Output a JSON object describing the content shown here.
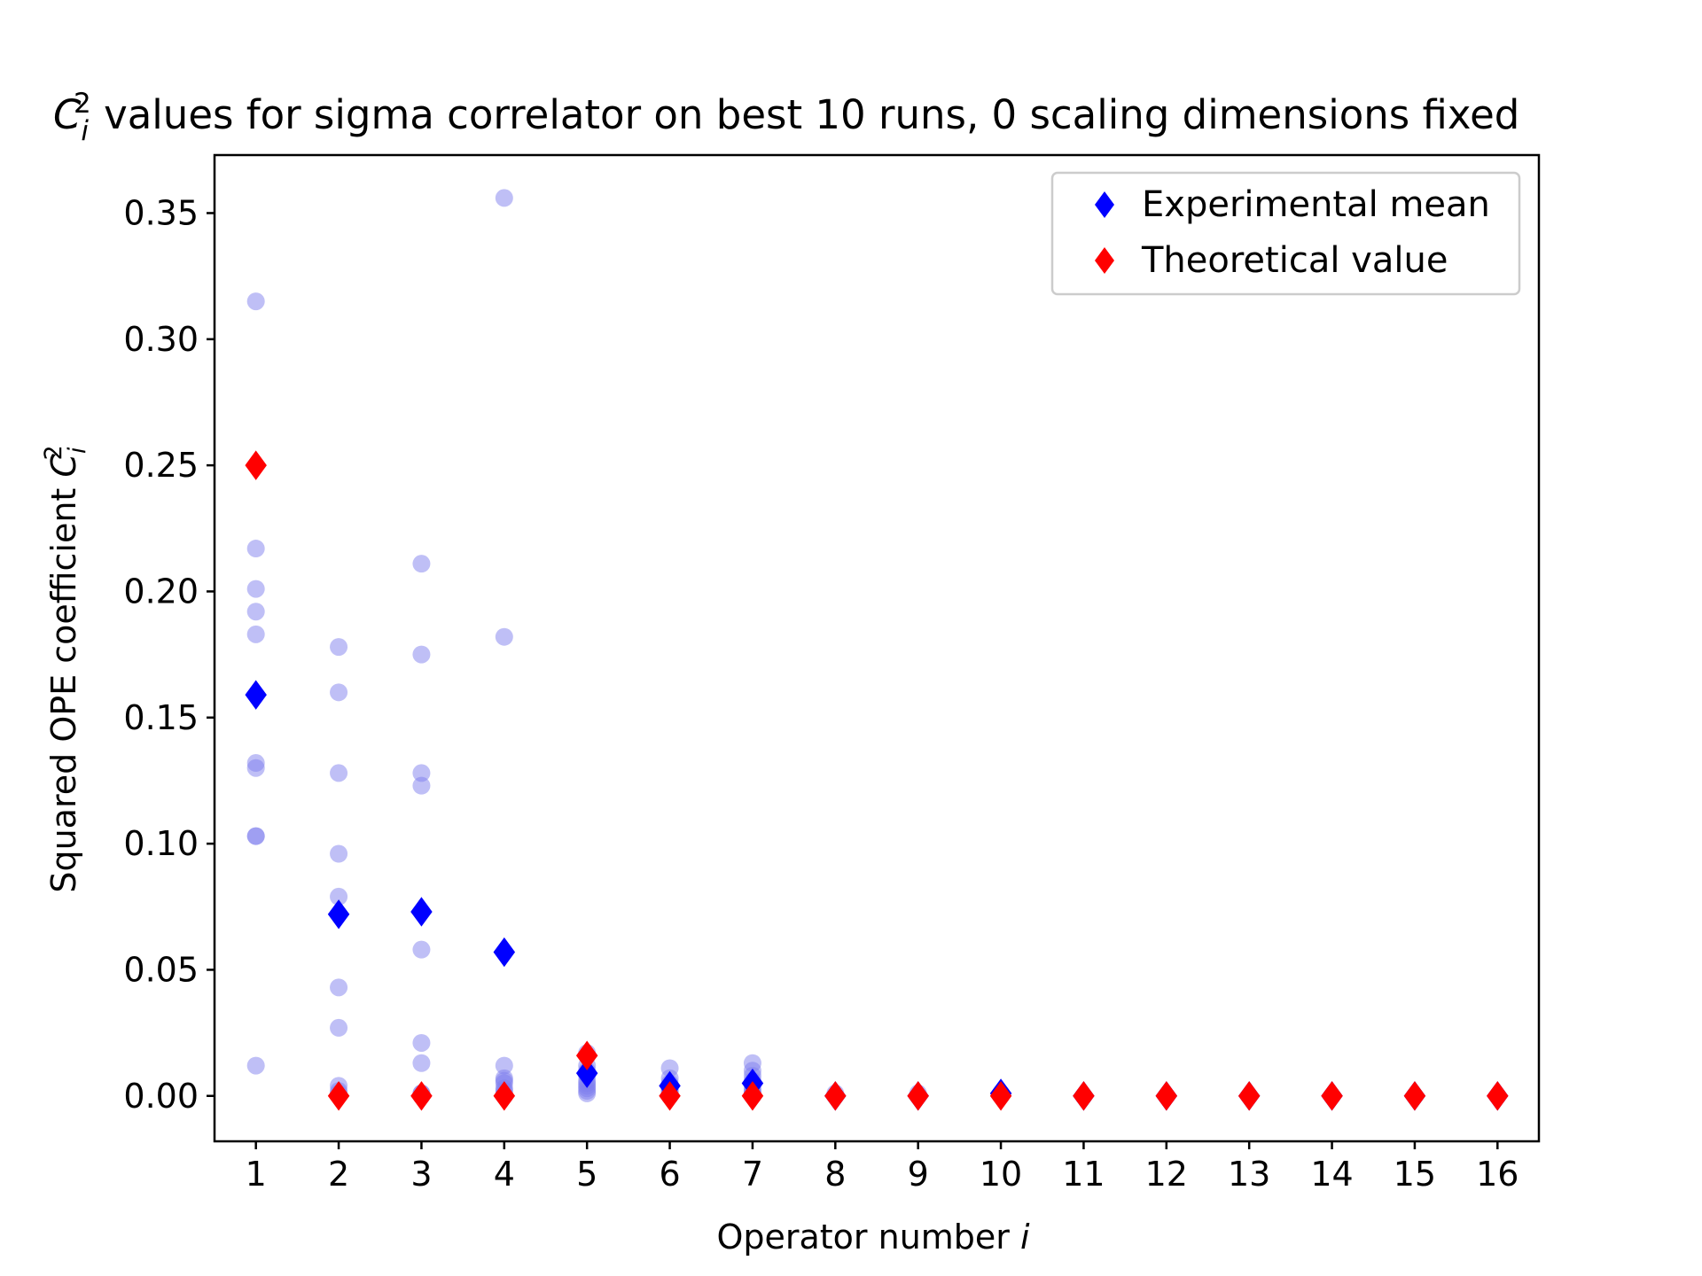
{
  "chart_data": {
    "type": "scatter",
    "title": {
      "var": "C",
      "sub": "i",
      "sup": "2",
      "rest": " values for sigma correlator on best 10 runs, 0 scaling dimensions fixed"
    },
    "xlabel": {
      "text": "Operator number ",
      "var": "i"
    },
    "ylabel": {
      "text": "Squared OPE coefficient ",
      "var": "C",
      "sub": "i",
      "sup": "2"
    },
    "xlim": [
      0.5,
      16.5
    ],
    "ylim": [
      -0.018,
      0.373
    ],
    "xticks": [
      1,
      2,
      3,
      4,
      5,
      6,
      7,
      8,
      9,
      10,
      11,
      12,
      13,
      14,
      15,
      16
    ],
    "yticks": [
      0.0,
      0.05,
      0.1,
      0.15,
      0.2,
      0.25,
      0.3,
      0.35
    ],
    "ytick_labels": [
      "0.00",
      "0.05",
      "0.10",
      "0.15",
      "0.20",
      "0.25",
      "0.30",
      "0.35"
    ],
    "grid": false,
    "legend": {
      "placement": "top-right"
    },
    "colors": {
      "runs": "#8080ee",
      "mean": "#0000ff",
      "theory": "#ff0000"
    },
    "runs": {
      "marker": "circle",
      "alpha": 0.5,
      "points": [
        [
          1,
          0.315
        ],
        [
          1,
          0.217
        ],
        [
          1,
          0.201
        ],
        [
          1,
          0.192
        ],
        [
          1,
          0.183
        ],
        [
          1,
          0.132
        ],
        [
          1,
          0.13
        ],
        [
          1,
          0.103
        ],
        [
          1,
          0.103
        ],
        [
          1,
          0.012
        ],
        [
          2,
          0.178
        ],
        [
          2,
          0.16
        ],
        [
          2,
          0.128
        ],
        [
          2,
          0.096
        ],
        [
          2,
          0.079
        ],
        [
          2,
          0.043
        ],
        [
          2,
          0.027
        ],
        [
          2,
          0.004
        ],
        [
          2,
          0.002
        ],
        [
          2,
          0.001
        ],
        [
          3,
          0.211
        ],
        [
          3,
          0.175
        ],
        [
          3,
          0.128
        ],
        [
          3,
          0.123
        ],
        [
          3,
          0.058
        ],
        [
          3,
          0.021
        ],
        [
          3,
          0.013
        ],
        [
          3,
          0.001
        ],
        [
          3,
          0.001
        ],
        [
          3,
          0.0
        ],
        [
          4,
          0.356
        ],
        [
          4,
          0.182
        ],
        [
          4,
          0.012
        ],
        [
          4,
          0.007
        ],
        [
          4,
          0.006
        ],
        [
          4,
          0.005
        ],
        [
          4,
          0.003
        ],
        [
          4,
          0.002
        ],
        [
          4,
          0.001
        ],
        [
          4,
          0.0
        ],
        [
          5,
          0.017
        ],
        [
          5,
          0.012
        ],
        [
          5,
          0.01
        ],
        [
          5,
          0.008
        ],
        [
          5,
          0.006
        ],
        [
          5,
          0.005
        ],
        [
          5,
          0.004
        ],
        [
          5,
          0.003
        ],
        [
          5,
          0.002
        ],
        [
          5,
          0.001
        ],
        [
          6,
          0.011
        ],
        [
          6,
          0.007
        ],
        [
          6,
          0.005
        ],
        [
          6,
          0.004
        ],
        [
          6,
          0.003
        ],
        [
          6,
          0.002
        ],
        [
          6,
          0.002
        ],
        [
          6,
          0.001
        ],
        [
          6,
          0.001
        ],
        [
          6,
          0.0
        ],
        [
          7,
          0.013
        ],
        [
          7,
          0.01
        ],
        [
          7,
          0.008
        ],
        [
          7,
          0.006
        ],
        [
          7,
          0.005
        ],
        [
          7,
          0.003
        ],
        [
          7,
          0.002
        ],
        [
          7,
          0.001
        ],
        [
          7,
          0.001
        ],
        [
          7,
          0.0
        ],
        [
          8,
          0.001
        ],
        [
          8,
          0.0
        ],
        [
          9,
          0.001
        ],
        [
          9,
          0.0
        ],
        [
          10,
          0.001
        ],
        [
          10,
          0.0
        ],
        [
          11,
          0.0
        ],
        [
          12,
          0.0
        ],
        [
          13,
          0.0
        ],
        [
          14,
          0.0
        ],
        [
          15,
          0.0
        ],
        [
          16,
          0.0
        ]
      ]
    },
    "series": [
      {
        "name": "Experimental mean",
        "marker": "thin_diamond",
        "x": [
          1,
          2,
          3,
          4,
          5,
          6,
          7,
          8,
          9,
          10,
          11,
          12,
          13,
          14,
          15,
          16
        ],
        "values": [
          0.159,
          0.072,
          0.073,
          0.057,
          0.009,
          0.004,
          0.005,
          0.0,
          0.0,
          0.001,
          0.0,
          0.0,
          0.0,
          0.0,
          0.0,
          0.0
        ]
      },
      {
        "name": "Theoretical value",
        "marker": "thin_diamond",
        "x": [
          1,
          2,
          3,
          4,
          5,
          6,
          7,
          8,
          9,
          10,
          11,
          12,
          13,
          14,
          15,
          16
        ],
        "values": [
          0.25,
          0.0,
          0.0,
          0.0,
          0.016,
          0.0,
          0.0,
          0.0,
          0.0,
          0.0,
          0.0,
          0.0,
          0.0,
          0.0,
          0.0,
          0.0
        ]
      }
    ]
  }
}
